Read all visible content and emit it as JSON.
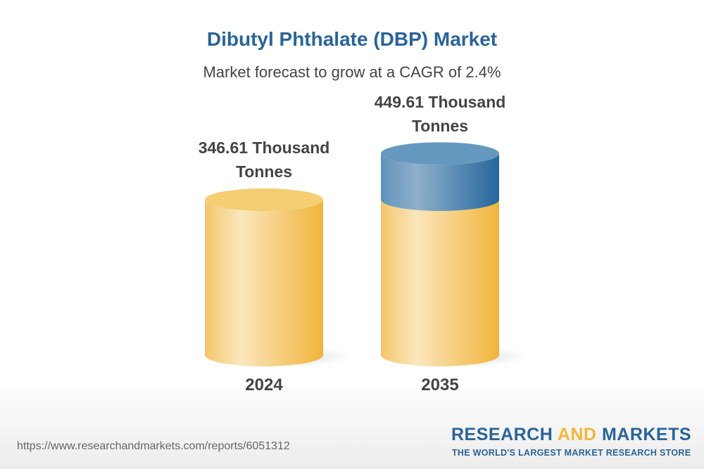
{
  "chart_data": {
    "type": "bar",
    "title": "Dibutyl Phthalate (DBP) Market",
    "subtitle": "Market forecast to grow at a CAGR of 2.4%",
    "categories": [
      "2024",
      "2035"
    ],
    "values": [
      346.61,
      449.61
    ],
    "unit": "Thousand Tonnes",
    "data_labels": [
      "346.61 Thousand Tonnes",
      "449.61 Thousand Tonnes"
    ],
    "colors": {
      "base": "#f2c055",
      "growth": "#3f7fb0"
    }
  },
  "footer": {
    "url": "https://www.researchandmarkets.com/reports/6051312",
    "logo_a": "RESEARCH ",
    "logo_and": "AND",
    "logo_b": " MARKETS",
    "tagline": "THE WORLD'S LARGEST MARKET RESEARCH STORE"
  }
}
